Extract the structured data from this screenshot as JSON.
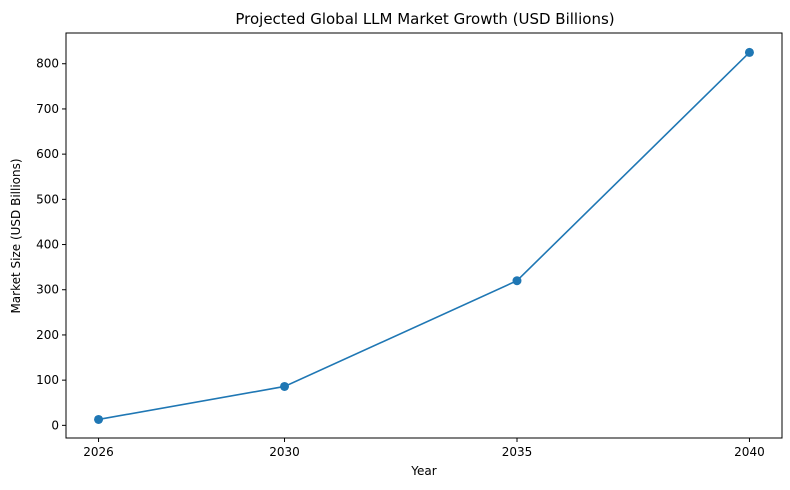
{
  "chart_data": {
    "type": "line",
    "title": "Projected Global LLM Market Growth (USD Billions)",
    "xlabel": "Year",
    "ylabel": "Market Size (USD Billions)",
    "x": [
      2026,
      2030,
      2035,
      2040
    ],
    "series": [
      {
        "name": "Market Size",
        "values": [
          13,
          86,
          320,
          825
        ],
        "color": "#1f77b4",
        "marker": "circle"
      }
    ],
    "xticks": [
      "2026",
      "2030",
      "2035",
      "2040"
    ],
    "yticks": [
      "0",
      "100",
      "200",
      "300",
      "400",
      "500",
      "600",
      "700",
      "800"
    ],
    "xlim": [
      2025.3,
      2040.7
    ],
    "ylim": [
      -28,
      868
    ],
    "grid": false,
    "legend": null
  }
}
